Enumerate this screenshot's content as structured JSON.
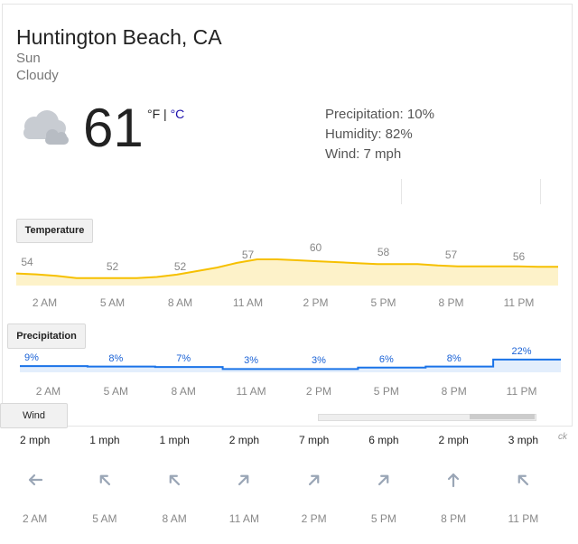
{
  "location": "Huntington Beach, CA",
  "day": "Sun",
  "condition": "Cloudy",
  "current_temp": "61",
  "unit_f": "°F",
  "unit_sep": " | ",
  "unit_c": "°C",
  "stats": {
    "precipitation": "Precipitation: 10%",
    "humidity": "Humidity: 82%",
    "wind": "Wind: 7 mph"
  },
  "buttons": {
    "temperature": "Temperature",
    "precipitation": "Precipitation",
    "wind": "Wind"
  },
  "side_label": "ck",
  "colors": {
    "temp_line": "#f6c000",
    "temp_fill": "#fdf2c9",
    "precip_line": "#1a73e8",
    "precip_fill": "#e3eefc",
    "precip_label": "#1a62d6",
    "arrow": "#9aa6b6"
  },
  "temperature_chart": {
    "times": [
      "2 AM",
      "5 AM",
      "8 AM",
      "11 AM",
      "2 PM",
      "5 PM",
      "8 PM",
      "11 PM"
    ],
    "labels": [
      "54",
      "52",
      "52",
      "57",
      "60",
      "58",
      "57",
      "56"
    ]
  },
  "precipitation_chart": {
    "times": [
      "2 AM",
      "5 AM",
      "8 AM",
      "11 AM",
      "2 PM",
      "5 PM",
      "8 PM",
      "11 PM"
    ],
    "labels": [
      "9%",
      "8%",
      "7%",
      "3%",
      "3%",
      "6%",
      "8%",
      "22%"
    ],
    "values": [
      9,
      8,
      7,
      3,
      3,
      6,
      8,
      22
    ]
  },
  "wind_chart": {
    "times": [
      "2 AM",
      "5 AM",
      "8 AM",
      "11 AM",
      "2 PM",
      "5 PM",
      "8 PM",
      "11 PM"
    ],
    "speeds": [
      "2 mph",
      "1 mph",
      "1 mph",
      "2 mph",
      "7 mph",
      "6 mph",
      "2 mph",
      "3 mph"
    ],
    "direction_icons": [
      "arrow-left-icon",
      "arrow-up-left-icon",
      "arrow-up-left-icon",
      "arrow-up-right-icon",
      "arrow-up-right-icon",
      "arrow-up-right-icon",
      "arrow-up-icon",
      "arrow-up-left-icon"
    ]
  }
}
